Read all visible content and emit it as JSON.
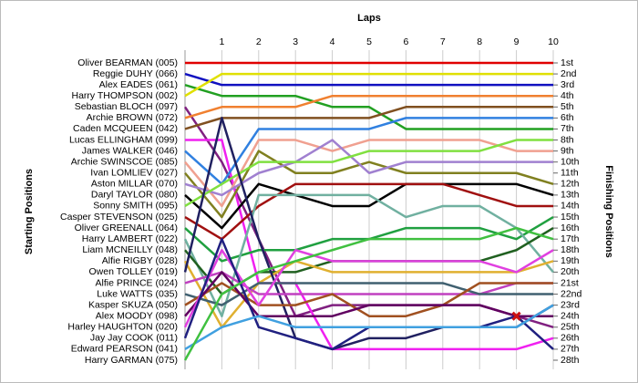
{
  "chart_data": {
    "type": "line",
    "title": "Laps",
    "y_label": "Starting Positions",
    "y2_label": "Finishing Positions",
    "x": [
      0,
      1,
      2,
      3,
      4,
      5,
      6,
      7,
      8,
      9,
      10
    ],
    "xlim": [
      0,
      10
    ],
    "xticks": [
      1,
      2,
      3,
      4,
      5,
      6,
      7,
      8,
      9,
      10
    ],
    "ylim": [
      1,
      28
    ],
    "y_reversed": true,
    "grid": true,
    "y2ticks": [
      {
        "value": 1,
        "label": "1st"
      },
      {
        "value": 2,
        "label": "2nd"
      },
      {
        "value": 3,
        "label": "3rd"
      },
      {
        "value": 4,
        "label": "4th"
      },
      {
        "value": 5,
        "label": "5th"
      },
      {
        "value": 6,
        "label": "6th"
      },
      {
        "value": 7,
        "label": "7th"
      },
      {
        "value": 8,
        "label": "8th"
      },
      {
        "value": 9,
        "label": "9th"
      },
      {
        "value": 10,
        "label": "10th"
      },
      {
        "value": 11,
        "label": "11th"
      },
      {
        "value": 12,
        "label": "12th"
      },
      {
        "value": 13,
        "label": "13th"
      },
      {
        "value": 14,
        "label": "14th"
      },
      {
        "value": 15,
        "label": "15th"
      },
      {
        "value": 16,
        "label": "16th"
      },
      {
        "value": 17,
        "label": "17th"
      },
      {
        "value": 18,
        "label": "18th"
      },
      {
        "value": 19,
        "label": "19th"
      },
      {
        "value": 20,
        "label": "20th"
      },
      {
        "value": 21,
        "label": "21st"
      },
      {
        "value": 22,
        "label": "22nd"
      },
      {
        "value": 23,
        "label": "23rd"
      },
      {
        "value": 24,
        "label": "24th"
      },
      {
        "value": 25,
        "label": "25th"
      },
      {
        "value": 26,
        "label": "26th"
      },
      {
        "value": 27,
        "label": "27th"
      },
      {
        "value": 28,
        "label": "28th"
      }
    ],
    "series": [
      {
        "name": "Oliver BEARMAN (005)",
        "color": "#e00000",
        "values": [
          1,
          1,
          1,
          1,
          1,
          1,
          1,
          1,
          1,
          1,
          1
        ]
      },
      {
        "name": "Reggie DUHY (066)",
        "color": "#1010c0",
        "values": [
          2,
          3,
          3,
          3,
          3,
          3,
          3,
          3,
          3,
          3,
          3
        ]
      },
      {
        "name": "Alex EADES (061)",
        "color": "#22a022",
        "values": [
          3,
          4,
          4,
          4,
          5,
          5,
          7,
          7,
          7,
          7,
          7
        ]
      },
      {
        "name": "Harry THOMPSON (002)",
        "color": "#e0e000",
        "values": [
          4,
          2,
          2,
          2,
          2,
          2,
          2,
          2,
          2,
          2,
          2
        ]
      },
      {
        "name": "Sebastian BLOCH (097)",
        "color": "#802080",
        "values": [
          5,
          10,
          17,
          24,
          23,
          23,
          23,
          23,
          23,
          24,
          25
        ]
      },
      {
        "name": "Archie BROWN (072)",
        "color": "#f08030",
        "values": [
          6,
          5,
          5,
          5,
          4,
          4,
          4,
          4,
          4,
          4,
          4
        ]
      },
      {
        "name": "Caden MCQUEEN (042)",
        "color": "#805020",
        "values": [
          7,
          6,
          6,
          6,
          6,
          6,
          5,
          5,
          5,
          5,
          5
        ]
      },
      {
        "name": "Lucas ELLINGHAM (099)",
        "color": "#f020f0",
        "values": [
          8,
          8,
          21,
          21,
          27,
          27,
          27,
          27,
          27,
          27,
          26
        ]
      },
      {
        "name": "James WALKER (046)",
        "color": "#3080e0",
        "values": [
          9,
          12,
          7,
          7,
          7,
          7,
          6,
          6,
          6,
          6,
          6
        ]
      },
      {
        "name": "Archie SWINSCOE (085)",
        "color": "#f0a090",
        "values": [
          10,
          14,
          8,
          8,
          9,
          8,
          8,
          8,
          8,
          9,
          9
        ]
      },
      {
        "name": "Ivan LOMLIEV (027)",
        "color": "#808020",
        "values": [
          11,
          15,
          9,
          11,
          11,
          10,
          11,
          11,
          11,
          11,
          12
        ]
      },
      {
        "name": "Aston MILLAR (070)",
        "color": "#a080d0",
        "values": [
          12,
          13,
          11,
          10,
          8,
          11,
          10,
          10,
          10,
          10,
          10
        ]
      },
      {
        "name": "Daryl TAYLOR (080)",
        "color": "#000000",
        "values": [
          13,
          16,
          12,
          13,
          14,
          14,
          12,
          12,
          12,
          12,
          13
        ]
      },
      {
        "name": "Sonny SMITH (095)",
        "color": "#80e040",
        "values": [
          14,
          12,
          10,
          10,
          10,
          9,
          9,
          9,
          9,
          8,
          8
        ]
      },
      {
        "name": "Casper STEVENSON (025)",
        "color": "#a01010",
        "values": [
          15,
          17,
          14,
          12,
          12,
          12,
          12,
          12,
          13,
          14,
          14
        ]
      },
      {
        "name": "Oliver GREENALL (064)",
        "color": "#20a040",
        "values": [
          16,
          19,
          18,
          18,
          17,
          17,
          16,
          16,
          16,
          17,
          15
        ]
      },
      {
        "name": "Harry LAMBERT (022)",
        "color": "#70b0a0",
        "values": [
          17,
          24,
          13,
          13,
          13,
          13,
          15,
          14,
          14,
          16,
          20
        ]
      },
      {
        "name": "Liam MCNEILLY (048)",
        "color": "#206020",
        "values": [
          18,
          22,
          20,
          20,
          19,
          19,
          19,
          19,
          19,
          18,
          16
        ]
      },
      {
        "name": "Alfie RIGBY (028)",
        "color": "#e0b030",
        "values": [
          19,
          25,
          21,
          19,
          20,
          20,
          20,
          20,
          20,
          20,
          19
        ]
      },
      {
        "name": "Owen TOLLEY (019)",
        "color": "#202060",
        "values": [
          20,
          6,
          17,
          26,
          27,
          26,
          26,
          25,
          25,
          25,
          23
        ]
      },
      {
        "name": "Alfie PRINCE (024)",
        "color": "#c040c0",
        "values": [
          21,
          20,
          22,
          22,
          22,
          22,
          22,
          22,
          22,
          21,
          21
        ]
      },
      {
        "name": "Luke WATTS (035)",
        "color": "#406070",
        "values": [
          22,
          23,
          21,
          21,
          21,
          21,
          21,
          21,
          22,
          22,
          22
        ]
      },
      {
        "name": "Kasper SKUZA (050)",
        "color": "#a05020",
        "values": [
          23,
          21,
          23,
          23,
          22,
          24,
          24,
          23,
          21,
          21,
          21
        ]
      },
      {
        "name": "Alex MOODY (098)",
        "color": "#600060",
        "values": [
          24,
          20,
          24,
          24,
          24,
          23,
          23,
          23,
          23,
          24,
          24
        ]
      },
      {
        "name": "Harley HAUGHTON (020)",
        "color": "#e040e0",
        "values": [
          25,
          18,
          23,
          18,
          19,
          19,
          19,
          19,
          19,
          20,
          18
        ]
      },
      {
        "name": "Jay Jay COOK (011)",
        "color": "#202080",
        "values": [
          26,
          17,
          25,
          26,
          27,
          25,
          25,
          25,
          25,
          24,
          27
        ]
      },
      {
        "name": "Edward PEARSON (041)",
        "color": "#40a0e0",
        "values": [
          27,
          25,
          24,
          25,
          25,
          25,
          25,
          25,
          25,
          25,
          23
        ]
      },
      {
        "name": "Harry GARMAN (075)",
        "color": "#40c040",
        "values": [
          28,
          22,
          20,
          19,
          18,
          17,
          17,
          17,
          17,
          16,
          17
        ]
      }
    ],
    "markers": [
      {
        "lap": 9,
        "position": 24,
        "color": "#cc1111"
      }
    ]
  }
}
